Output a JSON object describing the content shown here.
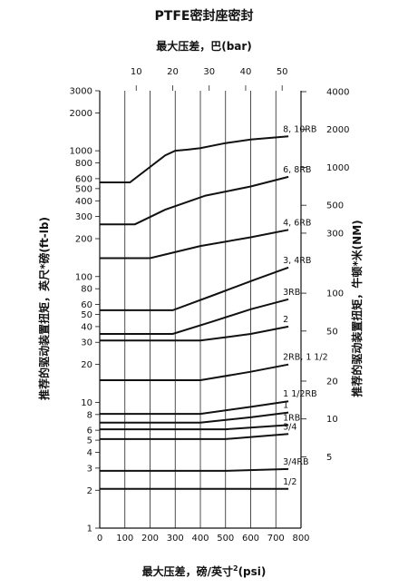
{
  "chart_data": {
    "type": "line",
    "title": "PTFE密封座密封",
    "top_axis_label": "最大压差，巴(bar)",
    "xlabel": "最大压差，磅/英寸",
    "xlabel_sup": "2",
    "xlabel_unit": "(psi)",
    "ylabel_left": "推荐的驱动装置扭矩，英尺*磅(ft-lb)",
    "ylabel_right": "推荐的驱动装置扭矩，牛顿*米(NM)",
    "x_ticks": [
      "0",
      "100",
      "200",
      "300",
      "400",
      "500",
      "600",
      "700",
      "800"
    ],
    "x_top_ticks": [
      "10",
      "20",
      "30",
      "40",
      "50"
    ],
    "x_top_tick_psi": [
      145,
      290,
      435,
      580,
      725
    ],
    "y_left_ticks": [
      "3000",
      "2000",
      "1000",
      "800",
      "600",
      "500",
      "400",
      "300",
      "200",
      "100",
      "80",
      "60",
      "50",
      "40",
      "30",
      "20",
      "10",
      "8",
      "6",
      "5",
      "4",
      "3",
      "2",
      "1"
    ],
    "y_left_tick_values": [
      3000,
      2000,
      1000,
      800,
      600,
      500,
      400,
      300,
      200,
      100,
      80,
      60,
      50,
      40,
      30,
      20,
      10,
      8,
      6,
      5,
      4,
      3,
      2,
      1
    ],
    "y_right_ticks": [
      "4000",
      "2000",
      "1000",
      "500",
      "300",
      "100",
      "50",
      "20",
      "10",
      "5"
    ],
    "y_right_tick_values": [
      4000,
      2000,
      1000,
      500,
      300,
      100,
      50,
      20,
      10,
      5
    ],
    "xlim": [
      0,
      800
    ],
    "ylim_ftlb": [
      1,
      3000
    ],
    "x_scale": "linear",
    "y_scale": "log",
    "grid": "vertical",
    "series": [
      {
        "name": "8, 10RB",
        "points": [
          [
            0,
            560
          ],
          [
            120,
            560
          ],
          [
            260,
            920
          ],
          [
            300,
            1000
          ],
          [
            350,
            1020
          ],
          [
            400,
            1050
          ],
          [
            500,
            1150
          ],
          [
            600,
            1230
          ],
          [
            750,
            1300
          ]
        ]
      },
      {
        "name": "6, 8RB",
        "points": [
          [
            0,
            260
          ],
          [
            140,
            260
          ],
          [
            260,
            340
          ],
          [
            420,
            440
          ],
          [
            600,
            520
          ],
          [
            750,
            620
          ]
        ]
      },
      {
        "name": "4, 6RB",
        "points": [
          [
            0,
            140
          ],
          [
            200,
            140
          ],
          [
            400,
            175
          ],
          [
            600,
            205
          ],
          [
            750,
            235
          ]
        ]
      },
      {
        "name": "3, 4RB",
        "points": [
          [
            0,
            54
          ],
          [
            290,
            54
          ],
          [
            460,
            72
          ],
          [
            620,
            95
          ],
          [
            750,
            118
          ]
        ]
      },
      {
        "name": "3RB",
        "points": [
          [
            0,
            35
          ],
          [
            290,
            35
          ],
          [
            450,
            44
          ],
          [
            600,
            55
          ],
          [
            750,
            66
          ]
        ]
      },
      {
        "name": "2",
        "points": [
          [
            0,
            31
          ],
          [
            400,
            31
          ],
          [
            600,
            35
          ],
          [
            750,
            40
          ]
        ]
      },
      {
        "name": "2RB, 1 1/2",
        "points": [
          [
            0,
            15
          ],
          [
            400,
            15
          ],
          [
            600,
            17.5
          ],
          [
            750,
            20
          ]
        ]
      },
      {
        "name": "1 1/2RB",
        "points": [
          [
            0,
            8.1
          ],
          [
            400,
            8.1
          ],
          [
            600,
            9.2
          ],
          [
            750,
            10.2
          ]
        ]
      },
      {
        "name": "1",
        "points": [
          [
            0,
            6.9
          ],
          [
            400,
            6.9
          ],
          [
            600,
            7.6
          ],
          [
            750,
            8.3
          ]
        ]
      },
      {
        "name": "1RB",
        "points": [
          [
            0,
            6.1
          ],
          [
            500,
            6.1
          ],
          [
            750,
            6.6
          ]
        ]
      },
      {
        "name": "3/4",
        "points": [
          [
            0,
            5.1
          ],
          [
            500,
            5.1
          ],
          [
            750,
            5.6
          ]
        ]
      },
      {
        "name": "3/4RB",
        "points": [
          [
            0,
            2.85
          ],
          [
            500,
            2.85
          ],
          [
            750,
            2.95
          ]
        ]
      },
      {
        "name": "1/2",
        "points": [
          [
            0,
            2.05
          ],
          [
            750,
            2.05
          ]
        ]
      }
    ]
  }
}
